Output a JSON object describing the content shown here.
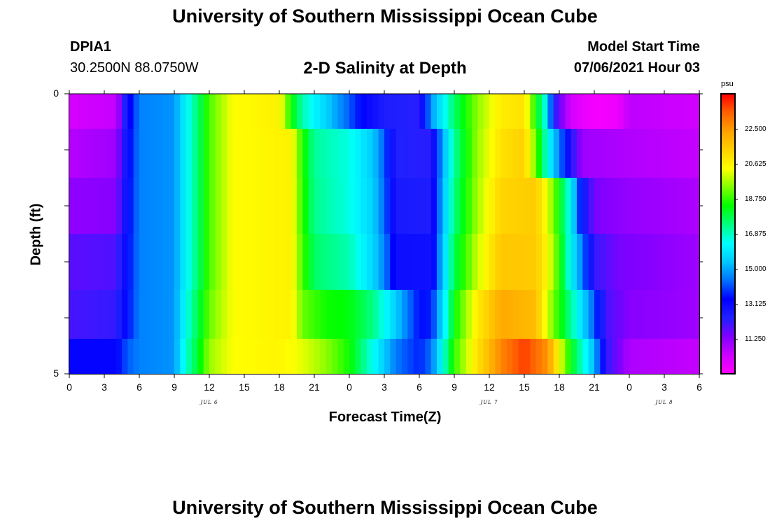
{
  "header": {
    "title": "University of Southern Mississippi Ocean Cube",
    "footer_title": "University of Southern Mississippi Ocean Cube",
    "station": "DPIA1",
    "coords": "30.2500N  88.0750W",
    "plot_title": "2-D Salinity at Depth",
    "model_start_label": "Model Start Time",
    "model_start_value": "07/06/2021 Hour 03"
  },
  "chart_data": {
    "type": "heatmap",
    "title": "2-D Salinity at Depth",
    "xlabel": "Forecast Time(Z)",
    "ylabel": "Depth (ft)",
    "x_tick_labels": [
      "0",
      "3",
      "6",
      "9",
      "12",
      "15",
      "18",
      "21",
      "0",
      "3",
      "6",
      "9",
      "12",
      "15",
      "18",
      "21",
      "0",
      "3",
      "6"
    ],
    "x_tick_hours": [
      0,
      3,
      6,
      9,
      12,
      15,
      18,
      21,
      24,
      27,
      30,
      33,
      36,
      39,
      42,
      45,
      48,
      51,
      54
    ],
    "day_labels": [
      {
        "text": "JUL 6",
        "hour": 12
      },
      {
        "text": "JUL 7",
        "hour": 36
      },
      {
        "text": "JUL 8",
        "hour": 51
      }
    ],
    "y_tick_labels": [
      "0",
      "5"
    ],
    "ylim": [
      0,
      5
    ],
    "xlim": [
      0,
      54
    ],
    "depth_layers_ft": [
      0.25,
      1.0,
      2.0,
      3.0,
      4.0,
      4.75
    ],
    "colorbar": {
      "unit": "psu",
      "tick_labels": [
        "22.500",
        "20.625",
        "18.750",
        "16.875",
        "15.000",
        "13.125",
        "11.250"
      ],
      "min": 9.4,
      "max": 24.4,
      "colors": [
        "#ff00ff",
        "#cc00ff",
        "#8000ff",
        "#2020ff",
        "#0000ff",
        "#0070ff",
        "#00c8ff",
        "#00ffff",
        "#00ff80",
        "#00ff00",
        "#80ff00",
        "#ffff00",
        "#ffd000",
        "#ffa000",
        "#ff6000",
        "#ff0000"
      ]
    },
    "series": [
      {
        "values": [
          [
            0,
            10.2
          ],
          [
            4,
            10.5
          ],
          [
            5,
            13.0
          ],
          [
            6,
            14.6
          ],
          [
            9,
            14.8
          ],
          [
            10,
            16.3
          ],
          [
            11,
            17.5
          ],
          [
            12,
            19.0
          ],
          [
            14,
            20.4
          ],
          [
            18,
            20.7
          ],
          [
            19,
            18.5
          ],
          [
            20,
            17.0
          ],
          [
            22,
            15.6
          ],
          [
            24,
            14.2
          ],
          [
            25,
            13.4
          ],
          [
            27,
            12.5
          ],
          [
            30,
            12.3
          ],
          [
            31,
            14.8
          ],
          [
            32,
            16.2
          ],
          [
            33,
            17.6
          ],
          [
            35,
            19.5
          ],
          [
            37,
            20.8
          ],
          [
            39,
            21.0
          ],
          [
            40,
            18.4
          ],
          [
            41,
            16.2
          ],
          [
            41.5,
            12.5
          ],
          [
            43,
            10.2
          ],
          [
            45,
            9.6
          ],
          [
            47,
            9.7
          ],
          [
            48,
            10.6
          ],
          [
            54,
            10.3
          ]
        ]
      },
      {
        "values": [
          [
            0,
            10.7
          ],
          [
            4,
            11.0
          ],
          [
            5,
            13.2
          ],
          [
            6,
            14.6
          ],
          [
            9,
            14.8
          ],
          [
            10,
            16.3
          ],
          [
            11,
            17.5
          ],
          [
            12,
            19.0
          ],
          [
            14,
            20.4
          ],
          [
            19,
            20.7
          ],
          [
            20,
            18.6
          ],
          [
            21,
            17.2
          ],
          [
            24,
            16.6
          ],
          [
            26,
            15.5
          ],
          [
            27,
            14.2
          ],
          [
            28,
            12.4
          ],
          [
            31,
            12.3
          ],
          [
            32,
            15.0
          ],
          [
            33,
            17.2
          ],
          [
            35,
            19.6
          ],
          [
            37,
            21.0
          ],
          [
            39,
            21.4
          ],
          [
            40,
            19.2
          ],
          [
            41,
            16.5
          ],
          [
            42,
            14.6
          ],
          [
            43,
            12.5
          ],
          [
            44,
            11.0
          ],
          [
            47,
            10.8
          ],
          [
            54,
            10.5
          ]
        ]
      },
      {
        "values": [
          [
            0,
            11.2
          ],
          [
            4,
            11.3
          ],
          [
            5,
            13.3
          ],
          [
            6,
            14.6
          ],
          [
            9,
            14.8
          ],
          [
            10,
            16.3
          ],
          [
            11,
            17.5
          ],
          [
            12,
            19.0
          ],
          [
            14,
            20.4
          ],
          [
            19,
            20.7
          ],
          [
            20,
            18.7
          ],
          [
            21,
            17.3
          ],
          [
            24,
            16.6
          ],
          [
            26,
            15.6
          ],
          [
            27,
            14.3
          ],
          [
            28,
            12.6
          ],
          [
            31,
            12.5
          ],
          [
            32,
            15.2
          ],
          [
            33,
            17.4
          ],
          [
            35,
            19.7
          ],
          [
            37,
            21.3
          ],
          [
            40,
            21.5
          ],
          [
            41,
            20.2
          ],
          [
            42,
            18.4
          ],
          [
            43,
            16.2
          ],
          [
            44,
            13.0
          ],
          [
            45,
            11.5
          ],
          [
            47,
            11.2
          ],
          [
            54,
            10.8
          ]
        ]
      },
      {
        "values": [
          [
            0,
            11.8
          ],
          [
            4,
            11.9
          ],
          [
            5,
            13.4
          ],
          [
            6,
            14.6
          ],
          [
            9,
            14.8
          ],
          [
            10,
            16.3
          ],
          [
            11,
            17.5
          ],
          [
            12,
            19.0
          ],
          [
            14,
            20.4
          ],
          [
            19,
            20.7
          ],
          [
            20,
            18.9
          ],
          [
            21,
            17.6
          ],
          [
            24,
            17.0
          ],
          [
            26,
            15.7
          ],
          [
            27,
            14.6
          ],
          [
            28,
            13.0
          ],
          [
            31,
            12.9
          ],
          [
            32,
            15.4
          ],
          [
            33,
            17.8
          ],
          [
            35,
            20.0
          ],
          [
            37,
            21.6
          ],
          [
            40,
            21.5
          ],
          [
            41,
            20.5
          ],
          [
            42,
            18.7
          ],
          [
            43,
            16.2
          ],
          [
            44,
            14.5
          ],
          [
            45,
            12.2
          ],
          [
            47,
            11.5
          ],
          [
            54,
            11.0
          ]
        ]
      },
      {
        "values": [
          [
            0,
            12.0
          ],
          [
            4,
            12.2
          ],
          [
            5,
            13.5
          ],
          [
            6,
            14.6
          ],
          [
            9,
            14.8
          ],
          [
            10,
            16.5
          ],
          [
            11,
            17.8
          ],
          [
            12,
            19.2
          ],
          [
            14,
            20.4
          ],
          [
            19,
            20.7
          ],
          [
            20,
            19.2
          ],
          [
            22,
            18.5
          ],
          [
            24,
            18.3
          ],
          [
            26,
            17.4
          ],
          [
            28,
            15.5
          ],
          [
            30,
            13.5
          ],
          [
            31,
            13.6
          ],
          [
            32,
            15.8
          ],
          [
            33,
            18.4
          ],
          [
            35,
            20.8
          ],
          [
            37,
            22.2
          ],
          [
            40,
            21.8
          ],
          [
            41,
            20.0
          ],
          [
            43,
            17.2
          ],
          [
            45,
            14.2
          ],
          [
            46,
            12.0
          ],
          [
            48,
            11.3
          ],
          [
            54,
            11.0
          ]
        ]
      },
      {
        "values": [
          [
            0,
            13.3
          ],
          [
            4,
            13.3
          ],
          [
            5,
            14.2
          ],
          [
            6,
            14.6
          ],
          [
            9,
            14.8
          ],
          [
            10,
            16.8
          ],
          [
            11,
            18.0
          ],
          [
            12,
            19.6
          ],
          [
            14,
            20.4
          ],
          [
            18,
            20.6
          ],
          [
            20,
            20.2
          ],
          [
            22,
            19.5
          ],
          [
            24,
            18.5
          ],
          [
            26,
            16.5
          ],
          [
            28,
            14.5
          ],
          [
            30,
            13.7
          ],
          [
            31,
            14.4
          ],
          [
            32,
            16.5
          ],
          [
            33,
            18.8
          ],
          [
            35,
            21.0
          ],
          [
            37,
            22.8
          ],
          [
            39,
            23.8
          ],
          [
            41,
            22.6
          ],
          [
            43,
            18.3
          ],
          [
            45,
            15.2
          ],
          [
            46,
            12.3
          ],
          [
            48,
            10.8
          ],
          [
            54,
            10.5
          ]
        ]
      }
    ]
  }
}
